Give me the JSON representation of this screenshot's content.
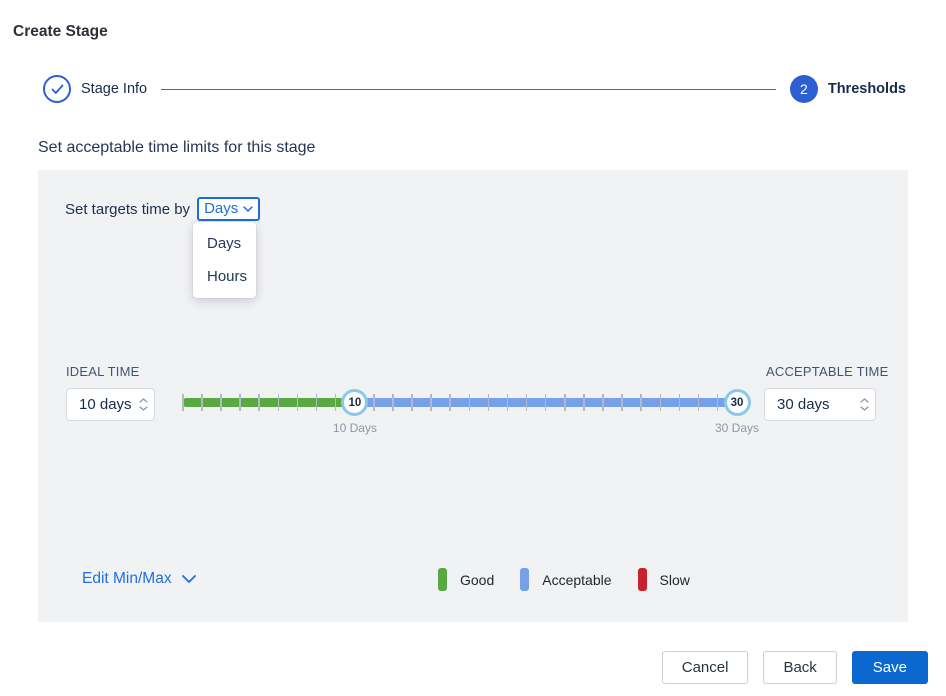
{
  "page": {
    "title": "Create Stage"
  },
  "stepper": {
    "step1_label": "Stage Info",
    "step2_label": "Thresholds",
    "step2_number": "2"
  },
  "section": {
    "heading": "Set acceptable time limits for this stage"
  },
  "targets": {
    "label": "Set targets time by",
    "selected_unit": "Days",
    "options": [
      "Days",
      "Hours"
    ]
  },
  "ideal": {
    "label": "IDEAL TIME",
    "value": "10 days"
  },
  "acceptable": {
    "label": "ACCEPTABLE TIME",
    "value": "30 days"
  },
  "slider": {
    "min": 1,
    "max": 30,
    "ideal": 10,
    "acceptable": 30,
    "ideal_handle_label": "10",
    "acceptable_handle_label": "30",
    "ideal_caption": "10 Days",
    "acceptable_caption": "30 Days"
  },
  "edit_minmax": {
    "label": "Edit Min/Max"
  },
  "legend": [
    {
      "label": "Good",
      "color": "#57a942"
    },
    {
      "label": "Acceptable",
      "color": "#76a1e8"
    },
    {
      "label": "Slow",
      "color": "#c9222e"
    }
  ],
  "footer": {
    "cancel_label": "Cancel",
    "back_label": "Back",
    "save_label": "Save"
  },
  "colors": {
    "accent_blue": "#1a6edc",
    "stepper_blue": "#2d5fd3",
    "save_blue": "#0b68d1",
    "good_green": "#57a942",
    "acceptable_blue": "#76a1e8",
    "slow_red": "#c9222e",
    "handle_ring": "#8cc7ec",
    "panel_bg": "#f1f2f4"
  }
}
